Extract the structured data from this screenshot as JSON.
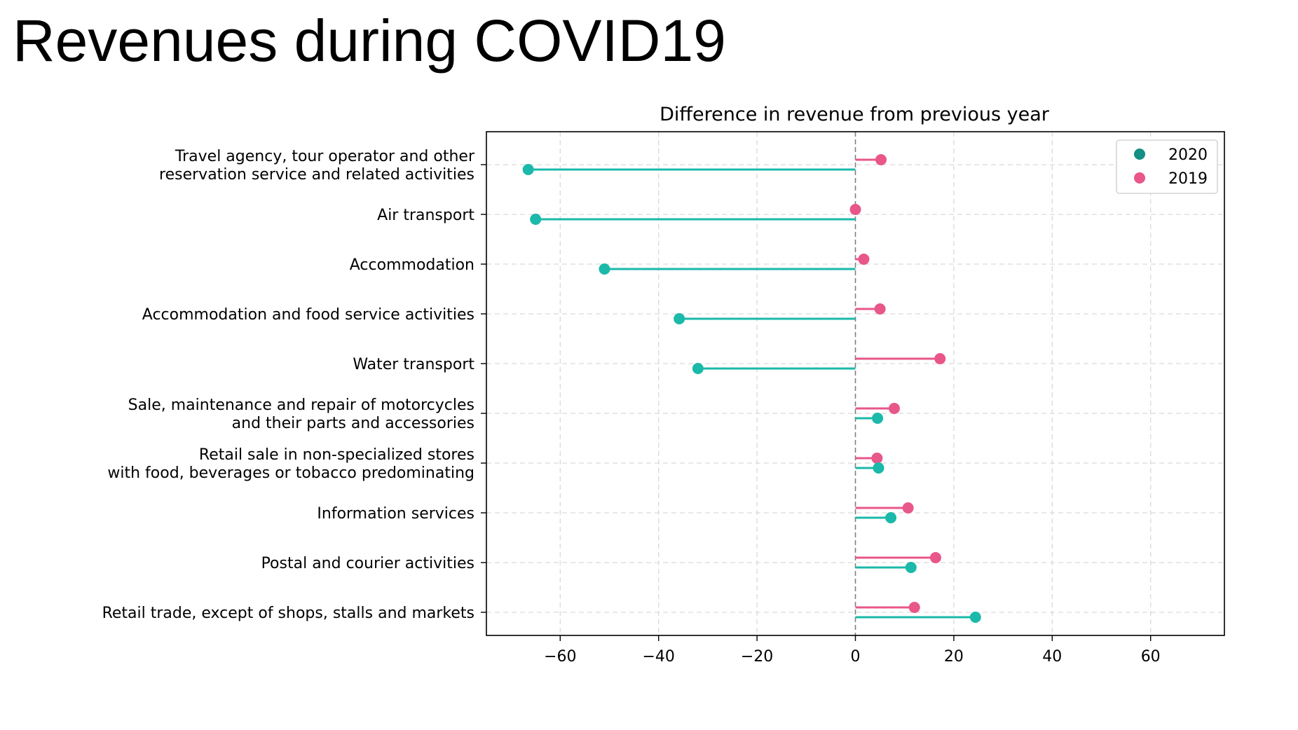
{
  "page": {
    "title": "Revenues during COVID19"
  },
  "colors": {
    "series_2020": "#1ab9a9",
    "series_2020_legend": "#138f84",
    "series_2019": "#e8568a",
    "zero_line": "#808080",
    "grid": "#d9d9d9"
  },
  "chart_data": {
    "type": "lollipop",
    "orientation": "horizontal",
    "title": "Difference in revenue from previous year",
    "xlabel": "",
    "ylabel": "",
    "xlim": [
      -75,
      75
    ],
    "xticks": [
      -60,
      -40,
      -20,
      0,
      20,
      40,
      60
    ],
    "xtick_labels": [
      "−60",
      "−40",
      "−20",
      "0",
      "20",
      "40",
      "60"
    ],
    "grid": true,
    "legend_position": "top-right",
    "categories": [
      "Travel agency, tour operator and other \nreservation service and related activities",
      "Air transport",
      "Accommodation",
      "Accommodation and food service activities",
      "Water transport",
      "Sale, maintenance and repair of motorcycles \nand their parts and accessories",
      "Retail sale in non-specialized stores\nwith food, beverages or tobacco predominating",
      "Information services",
      "Postal and courier activities",
      "Retail trade, except of shops, stalls and markets"
    ],
    "series": [
      {
        "name": "2020",
        "values": [
          -66.5,
          -65,
          -51,
          -35.8,
          -32,
          4.5,
          4.7,
          7.2,
          11.3,
          24.4
        ]
      },
      {
        "name": "2019",
        "values": [
          5.2,
          0,
          1.7,
          5,
          17.2,
          7.9,
          4.4,
          10.7,
          16.3,
          12
        ]
      }
    ]
  }
}
